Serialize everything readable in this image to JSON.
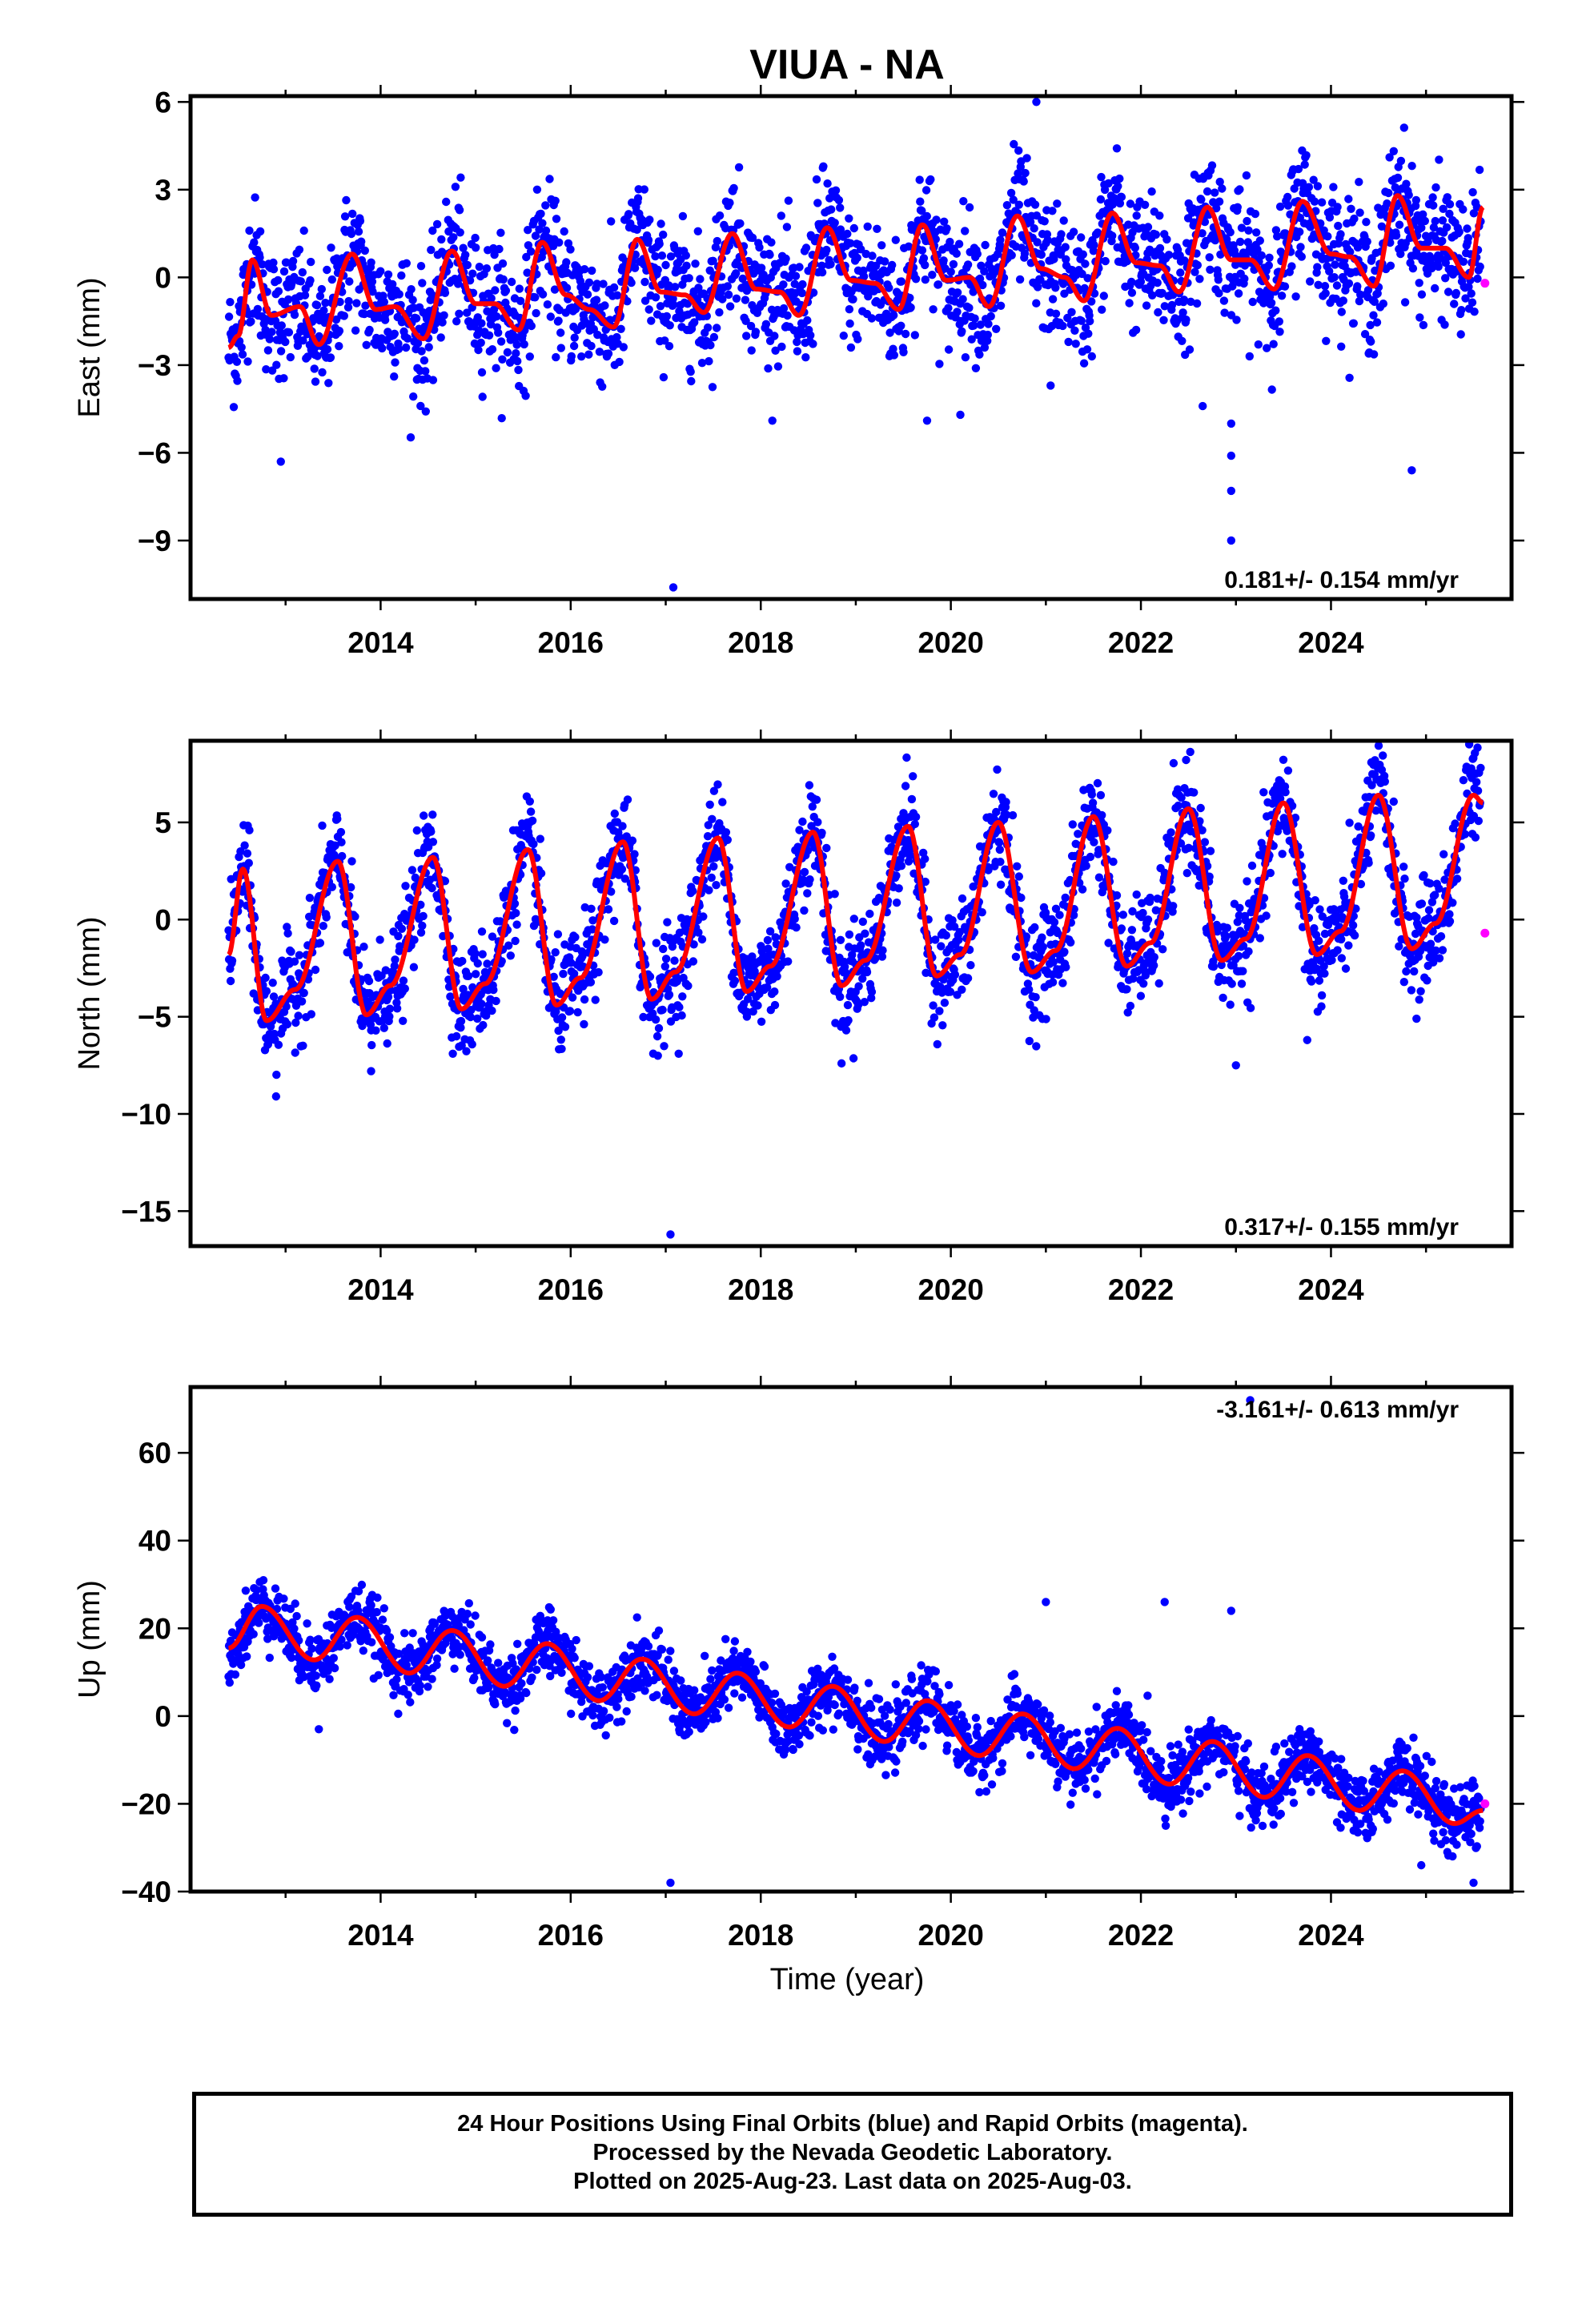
{
  "chart_data": {
    "title": "VIUA - NA",
    "xlabel": "Time (year)",
    "x_tick_labels": [
      "2014",
      "2016",
      "2018",
      "2020",
      "2022",
      "2024"
    ],
    "xlim": [
      2012.0,
      2025.9
    ],
    "legend": "none",
    "colors": {
      "final_orbits": "#0000ff",
      "rapid_orbits": "#ff00ff",
      "model_fit": "#ff0000",
      "frame": "#000000"
    },
    "panels": [
      {
        "type": "scatter",
        "ylabel": "East (mm)",
        "ylim": [
          -11.0,
          6.2
        ],
        "y_tick_labels": [
          "6",
          "3",
          "0",
          "−3",
          "−6",
          "−9"
        ],
        "y_ticks": [
          6,
          3,
          0,
          -3,
          -6,
          -9
        ],
        "rate_label": "0.181+/- 0.154 mm/yr",
        "rate_position": "bottom-right",
        "series": [
          {
            "name": "Final Orbits",
            "color": "#0000ff",
            "start": 2012.4,
            "end": 2025.58,
            "trend": {
              "intercept": -1.2,
              "slope": 0.18,
              "ref_year": 2012.4
            },
            "seasonal": {
              "amplitude": 1.2,
              "phase_year": 2012.6
            },
            "scatter_sd": 1.1,
            "outliers": [
              [
                2017.08,
                -10.6
              ],
              [
                2022.95,
                -9.0
              ],
              [
                2022.95,
                -7.3
              ],
              [
                2022.95,
                -6.1
              ],
              [
                2022.95,
                -5.0
              ],
              [
                2012.95,
                -6.3
              ],
              [
                2024.85,
                -6.6
              ],
              [
                2019.75,
                -4.9
              ],
              [
                2020.1,
                -4.7
              ],
              [
                2020.9,
                6.0
              ],
              [
                2021.05,
                -3.7
              ],
              [
                2022.65,
                -4.4
              ]
            ]
          },
          {
            "name": "Rapid Orbits",
            "color": "#ff00ff",
            "points": [
              [
                2025.62,
                -0.2
              ]
            ]
          },
          {
            "name": "Model fit",
            "color": "#ff0000",
            "keypoints": [
              [
                2012.4,
                -2.4
              ],
              [
                2012.5,
                -2.0
              ],
              [
                2012.65,
                0.6
              ],
              [
                2012.85,
                -1.3
              ],
              [
                2013.15,
                -1.0
              ],
              [
                2013.35,
                -2.3
              ],
              [
                2013.7,
                0.8
              ],
              [
                2013.95,
                -1.1
              ],
              [
                2014.15,
                -1.0
              ],
              [
                2014.45,
                -2.1
              ],
              [
                2014.75,
                0.9
              ],
              [
                2015.0,
                -0.9
              ],
              [
                2015.2,
                -0.9
              ],
              [
                2015.45,
                -1.8
              ],
              [
                2015.7,
                1.2
              ],
              [
                2015.95,
                -0.6
              ],
              [
                2016.2,
                -1.1
              ],
              [
                2016.45,
                -1.7
              ],
              [
                2016.7,
                1.3
              ],
              [
                2016.95,
                -0.5
              ],
              [
                2017.2,
                -0.6
              ],
              [
                2017.4,
                -1.2
              ],
              [
                2017.7,
                1.5
              ],
              [
                2017.95,
                -0.4
              ],
              [
                2018.2,
                -0.5
              ],
              [
                2018.4,
                -1.3
              ],
              [
                2018.7,
                1.7
              ],
              [
                2018.95,
                -0.1
              ],
              [
                2019.2,
                -0.2
              ],
              [
                2019.45,
                -1.1
              ],
              [
                2019.7,
                1.8
              ],
              [
                2019.95,
                -0.1
              ],
              [
                2020.2,
                0.0
              ],
              [
                2020.4,
                -1.0
              ],
              [
                2020.7,
                2.1
              ],
              [
                2020.95,
                0.3
              ],
              [
                2021.2,
                0.0
              ],
              [
                2021.4,
                -0.8
              ],
              [
                2021.7,
                2.2
              ],
              [
                2021.95,
                0.5
              ],
              [
                2022.2,
                0.4
              ],
              [
                2022.4,
                -0.5
              ],
              [
                2022.7,
                2.4
              ],
              [
                2022.95,
                0.6
              ],
              [
                2023.15,
                0.6
              ],
              [
                2023.4,
                -0.4
              ],
              [
                2023.7,
                2.6
              ],
              [
                2024.0,
                0.8
              ],
              [
                2024.2,
                0.7
              ],
              [
                2024.45,
                -0.3
              ],
              [
                2024.7,
                2.8
              ],
              [
                2024.95,
                1.0
              ],
              [
                2025.2,
                1.0
              ],
              [
                2025.45,
                0.0
              ],
              [
                2025.6,
                2.4
              ]
            ]
          }
        ]
      },
      {
        "type": "scatter",
        "ylabel": "North (mm)",
        "ylim": [
          -16.8,
          9.2
        ],
        "y_tick_labels": [
          "5",
          "0",
          "−5",
          "−10",
          "−15"
        ],
        "y_ticks": [
          5,
          0,
          -5,
          -10,
          -15
        ],
        "rate_label": "0.317+/- 0.155 mm/yr",
        "rate_position": "bottom-right",
        "series": [
          {
            "name": "Final Orbits",
            "color": "#0000ff",
            "start": 2012.4,
            "end": 2025.58,
            "trend": {
              "intercept": -1.1,
              "slope": 0.32,
              "ref_year": 2012.4
            },
            "seasonal": {
              "amplitude": 3.6,
              "phase_year": 2012.55
            },
            "scatter_sd": 1.3,
            "outliers": [
              [
                2017.05,
                -16.2
              ],
              [
                2023.0,
                -7.5
              ],
              [
                2018.85,
                -7.4
              ],
              [
                2023.75,
                -6.2
              ],
              [
                2012.9,
                -9.1
              ],
              [
                2013.9,
                -7.8
              ],
              [
                2024.9,
                -5.1
              ]
            ]
          },
          {
            "name": "Rapid Orbits",
            "color": "#ff00ff",
            "points": [
              [
                2025.62,
                -0.7
              ]
            ]
          },
          {
            "name": "Model fit",
            "color": "#ff0000",
            "keypoints": [
              [
                2012.4,
                -1.8
              ],
              [
                2012.55,
                2.6
              ],
              [
                2012.8,
                -5.2
              ],
              [
                2013.1,
                -3.6
              ],
              [
                2013.55,
                3.0
              ],
              [
                2013.85,
                -4.9
              ],
              [
                2014.1,
                -3.4
              ],
              [
                2014.55,
                3.2
              ],
              [
                2014.85,
                -4.6
              ],
              [
                2015.1,
                -3.3
              ],
              [
                2015.55,
                3.6
              ],
              [
                2015.85,
                -4.4
              ],
              [
                2016.1,
                -3.0
              ],
              [
                2016.55,
                4.0
              ],
              [
                2016.85,
                -4.1
              ],
              [
                2017.1,
                -2.7
              ],
              [
                2017.55,
                4.2
              ],
              [
                2017.85,
                -3.7
              ],
              [
                2018.1,
                -2.4
              ],
              [
                2018.55,
                4.5
              ],
              [
                2018.85,
                -3.4
              ],
              [
                2019.1,
                -2.1
              ],
              [
                2019.55,
                4.8
              ],
              [
                2019.85,
                -2.9
              ],
              [
                2020.1,
                -1.8
              ],
              [
                2020.5,
                5.0
              ],
              [
                2020.85,
                -2.7
              ],
              [
                2021.1,
                -1.6
              ],
              [
                2021.5,
                5.3
              ],
              [
                2021.85,
                -2.4
              ],
              [
                2022.1,
                -1.2
              ],
              [
                2022.5,
                5.7
              ],
              [
                2022.85,
                -2.1
              ],
              [
                2023.1,
                -1.0
              ],
              [
                2023.5,
                6.0
              ],
              [
                2023.85,
                -1.8
              ],
              [
                2024.1,
                -0.6
              ],
              [
                2024.5,
                6.4
              ],
              [
                2024.85,
                -1.5
              ],
              [
                2025.1,
                -0.2
              ],
              [
                2025.5,
                6.4
              ],
              [
                2025.6,
                6.0
              ]
            ]
          }
        ]
      },
      {
        "type": "scatter",
        "ylabel": "Up (mm)",
        "ylim": [
          -40,
          75
        ],
        "y_tick_labels": [
          "60",
          "40",
          "20",
          "0",
          "−20",
          "−40"
        ],
        "y_ticks": [
          60,
          40,
          20,
          0,
          -20,
          -40
        ],
        "rate_label": "-3.161+/- 0.613 mm/yr",
        "rate_position": "top-right",
        "series": [
          {
            "name": "Final Orbits",
            "color": "#0000ff",
            "start": 2012.4,
            "end": 2025.58,
            "trend": {
              "intercept": 20,
              "slope": -3.16,
              "ref_year": 2012.4
            },
            "seasonal": {
              "amplitude": 5.5,
              "phase_year": 2012.75
            },
            "scatter_sd": 3.6,
            "outliers": [
              [
                2023.15,
                72
              ],
              [
                2017.05,
                -38
              ],
              [
                2025.5,
                -38
              ],
              [
                2024.95,
                -34
              ],
              [
                2021.0,
                26
              ],
              [
                2022.25,
                26
              ],
              [
                2022.95,
                24
              ],
              [
                2013.35,
                -3
              ]
            ]
          },
          {
            "name": "Rapid Orbits",
            "color": "#ff00ff",
            "points": [
              [
                2025.62,
                -20
              ]
            ]
          },
          {
            "name": "Model fit",
            "color": "#ff0000",
            "keypoints": [
              [
                2012.4,
                15.5
              ],
              [
                2012.75,
                25
              ],
              [
                2013.3,
                12.8
              ],
              [
                2013.75,
                22.5
              ],
              [
                2014.3,
                9.8
              ],
              [
                2014.75,
                19.5
              ],
              [
                2015.3,
                6.8
              ],
              [
                2015.75,
                16.5
              ],
              [
                2016.3,
                3.5
              ],
              [
                2016.75,
                13.0
              ],
              [
                2017.3,
                0.5
              ],
              [
                2017.75,
                9.8
              ],
              [
                2018.3,
                -2.5
              ],
              [
                2018.75,
                6.8
              ],
              [
                2019.3,
                -5.8
              ],
              [
                2019.75,
                3.5
              ],
              [
                2020.3,
                -9.0
              ],
              [
                2020.75,
                0.5
              ],
              [
                2021.3,
                -12.0
              ],
              [
                2021.75,
                -2.8
              ],
              [
                2022.3,
                -15.5
              ],
              [
                2022.75,
                -5.8
              ],
              [
                2023.3,
                -18.5
              ],
              [
                2023.75,
                -9.0
              ],
              [
                2024.3,
                -21.5
              ],
              [
                2024.75,
                -12.5
              ],
              [
                2025.3,
                -24.5
              ],
              [
                2025.6,
                -21.5
              ]
            ]
          }
        ]
      }
    ]
  },
  "caption": {
    "line1": "24 Hour Positions Using Final Orbits (blue) and Rapid Orbits (magenta).",
    "line2": "Processed by the Nevada Geodetic Laboratory.",
    "line3": "Plotted on 2025-Aug-23. Last data on 2025-Aug-03."
  }
}
